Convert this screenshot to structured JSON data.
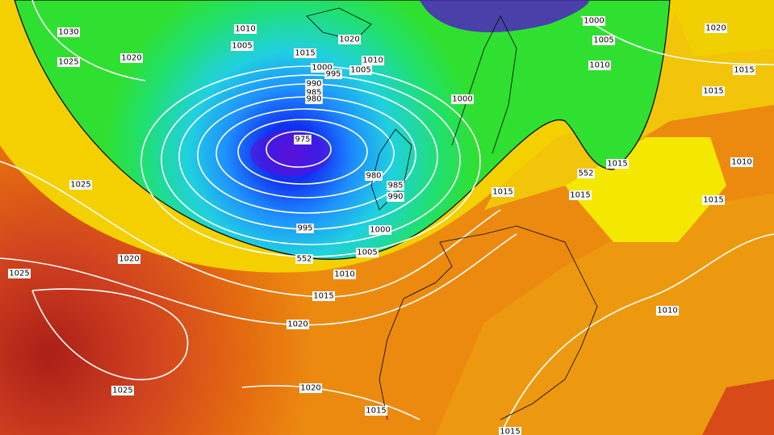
{
  "labels": [
    "1030",
    "1025",
    "1020",
    "1010",
    "1005",
    "1020",
    "1015",
    "1010",
    "1000",
    "995",
    "1005",
    "990",
    "985",
    "980",
    "975",
    "980",
    "985",
    "990",
    "995",
    "1000",
    "552",
    "1005",
    "1010",
    "1015",
    "1020",
    "1025",
    "1020",
    "1025",
    "1025",
    "1020",
    "1015",
    "1015",
    "1000",
    "1000",
    "1005",
    "1010",
    "1020",
    "1015",
    "1015",
    "1010",
    "1015",
    "1015",
    "552",
    "1015",
    "1015",
    "1010"
  ]
}
